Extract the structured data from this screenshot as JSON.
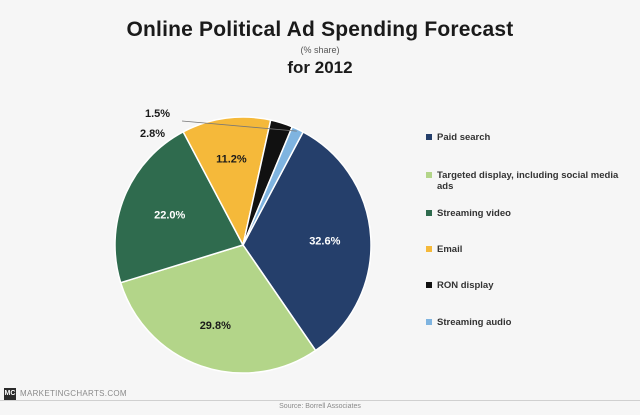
{
  "chart_data": {
    "type": "pie",
    "title": "Online Political Ad Spending Forecast",
    "subtitle": "(% share)",
    "period": "for 2012",
    "slices": [
      {
        "label": "Paid search",
        "value": 32.6,
        "display": "32.6%",
        "color": "#253f6b"
      },
      {
        "label": "Targeted display, including social media ads",
        "value": 29.8,
        "display": "29.8%",
        "color": "#b3d589"
      },
      {
        "label": "Streaming video",
        "value": 22.0,
        "display": "22.0%",
        "color": "#2f6b4e"
      },
      {
        "label": "Email",
        "value": 11.2,
        "display": "11.2%",
        "color": "#f5b93a"
      },
      {
        "label": "RON display",
        "value": 2.8,
        "display": "2.8%",
        "color": "#111111"
      },
      {
        "label": "Streaming audio",
        "value": 1.5,
        "display": "1.5%",
        "color": "#7fb4e0"
      }
    ],
    "legend_position": "right"
  },
  "footer": {
    "logo": "MC",
    "site": "MARKETINGCHARTS.COM",
    "source": "Source: Borrell Associates"
  }
}
